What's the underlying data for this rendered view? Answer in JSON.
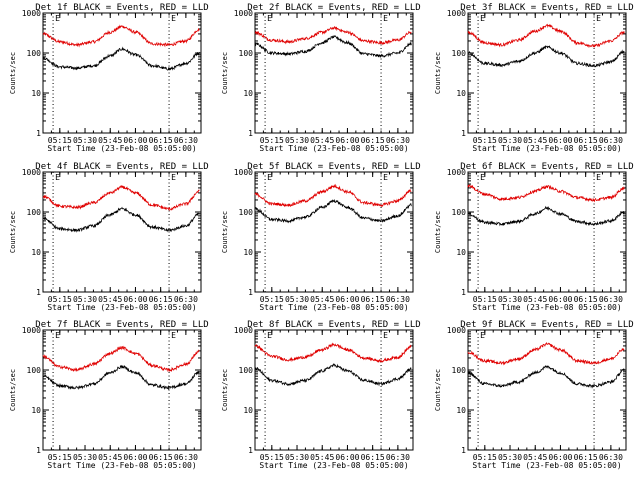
{
  "chart_data": [
    {
      "type": "line",
      "title": "Det 1f BLACK = Events, RED = LLD",
      "xlabel": "Start Time (23-Feb-08 05:05:00)",
      "ylabel": "Counts/sec",
      "yscale": "log",
      "ylim": [
        1,
        1000
      ],
      "x_ticks": [
        "05:15",
        "05:30",
        "05:45",
        "06:00",
        "06:15",
        "06:30"
      ],
      "y_ticks": [
        "1",
        "10",
        "100",
        "1000"
      ],
      "markers": [
        "E",
        "E"
      ],
      "marker_times": [
        "05:11",
        "06:20"
      ],
      "series": [
        {
          "color": "#e00000",
          "x": [
            "05:05",
            "05:15",
            "05:25",
            "05:35",
            "05:45",
            "05:52",
            "06:00",
            "06:10",
            "06:20",
            "06:30",
            "06:38"
          ],
          "y": [
            300,
            190,
            160,
            190,
            330,
            460,
            330,
            170,
            160,
            200,
            390
          ]
        },
        {
          "color": "#000000",
          "x": [
            "05:05",
            "05:15",
            "05:25",
            "05:35",
            "05:45",
            "05:52",
            "06:00",
            "06:10",
            "06:20",
            "06:30",
            "06:38"
          ],
          "y": [
            75,
            45,
            42,
            48,
            85,
            125,
            90,
            48,
            40,
            55,
            100
          ]
        }
      ]
    },
    {
      "type": "line",
      "title": "Det 2f BLACK = Events, RED = LLD",
      "xlabel": "Start Time (23-Feb-08 05:05:00)",
      "ylabel": "Counts/sec",
      "yscale": "log",
      "ylim": [
        1,
        1000
      ],
      "x_ticks": [
        "05:15",
        "05:30",
        "05:45",
        "06:00",
        "06:15",
        "06:30"
      ],
      "y_ticks": [
        "1",
        "10",
        "100",
        "1000"
      ],
      "markers": [
        "E",
        "E"
      ],
      "marker_times": [
        "05:11",
        "06:20"
      ],
      "series": [
        {
          "color": "#e00000",
          "x": [
            "05:05",
            "05:15",
            "05:25",
            "05:35",
            "05:45",
            "05:52",
            "06:00",
            "06:10",
            "06:20",
            "06:30",
            "06:38"
          ],
          "y": [
            330,
            210,
            190,
            230,
            330,
            420,
            330,
            200,
            180,
            210,
            330
          ]
        },
        {
          "color": "#000000",
          "x": [
            "05:05",
            "05:15",
            "05:25",
            "05:35",
            "05:45",
            "05:52",
            "06:00",
            "06:10",
            "06:20",
            "06:30",
            "06:38"
          ],
          "y": [
            170,
            100,
            95,
            110,
            180,
            250,
            180,
            95,
            85,
            100,
            170
          ]
        }
      ]
    },
    {
      "type": "line",
      "title": "Det 3f BLACK = Events, RED = LLD",
      "xlabel": "Start Time (23-Feb-08 05:05:00)",
      "ylabel": "Counts/sec",
      "yscale": "log",
      "ylim": [
        1,
        1000
      ],
      "x_ticks": [
        "05:15",
        "05:30",
        "05:45",
        "06:00",
        "06:15",
        "06:30"
      ],
      "y_ticks": [
        "1",
        "10",
        "100",
        "1000"
      ],
      "markers": [
        "E",
        "E"
      ],
      "marker_times": [
        "05:11",
        "06:20"
      ],
      "series": [
        {
          "color": "#e00000",
          "x": [
            "05:05",
            "05:15",
            "05:25",
            "05:35",
            "05:45",
            "05:52",
            "06:00",
            "06:10",
            "06:20",
            "06:30",
            "06:38"
          ],
          "y": [
            330,
            180,
            160,
            210,
            350,
            480,
            350,
            180,
            150,
            200,
            330
          ]
        },
        {
          "color": "#000000",
          "x": [
            "05:05",
            "05:15",
            "05:25",
            "05:35",
            "05:45",
            "05:52",
            "06:00",
            "06:10",
            "06:20",
            "06:30",
            "06:38"
          ],
          "y": [
            100,
            55,
            50,
            62,
            100,
            140,
            100,
            55,
            48,
            60,
            110
          ]
        }
      ]
    },
    {
      "type": "line",
      "title": "Det 4f BLACK = Events, RED = LLD",
      "xlabel": "Start Time (23-Feb-08 05:05:00)",
      "ylabel": "Counts/sec",
      "yscale": "log",
      "ylim": [
        1,
        1000
      ],
      "x_ticks": [
        "05:15",
        "05:30",
        "05:45",
        "06:00",
        "06:15",
        "06:30"
      ],
      "y_ticks": [
        "1",
        "10",
        "100",
        "1000"
      ],
      "markers": [
        "E",
        "E"
      ],
      "marker_times": [
        "05:11",
        "06:20"
      ],
      "series": [
        {
          "color": "#e00000",
          "x": [
            "05:05",
            "05:15",
            "05:25",
            "05:35",
            "05:45",
            "05:52",
            "06:00",
            "06:10",
            "06:20",
            "06:30",
            "06:38"
          ],
          "y": [
            250,
            140,
            130,
            170,
            300,
            420,
            300,
            150,
            120,
            160,
            330
          ]
        },
        {
          "color": "#000000",
          "x": [
            "05:05",
            "05:15",
            "05:25",
            "05:35",
            "05:45",
            "05:52",
            "06:00",
            "06:10",
            "06:20",
            "06:30",
            "06:38"
          ],
          "y": [
            70,
            38,
            35,
            45,
            85,
            120,
            85,
            42,
            35,
            45,
            90
          ]
        }
      ]
    },
    {
      "type": "line",
      "title": "Det 5f BLACK = Events, RED = LLD",
      "xlabel": "Start Time (23-Feb-08 05:05:00)",
      "ylabel": "Counts/sec",
      "yscale": "log",
      "ylim": [
        1,
        1000
      ],
      "x_ticks": [
        "05:15",
        "05:30",
        "05:45",
        "06:00",
        "06:15",
        "06:30"
      ],
      "y_ticks": [
        "1",
        "10",
        "100",
        "1000"
      ],
      "markers": [
        "E",
        "E"
      ],
      "marker_times": [
        "05:11",
        "06:20"
      ],
      "series": [
        {
          "color": "#e00000",
          "x": [
            "05:05",
            "05:15",
            "05:25",
            "05:35",
            "05:45",
            "05:52",
            "06:00",
            "06:10",
            "06:20",
            "06:30",
            "06:38"
          ],
          "y": [
            280,
            160,
            150,
            190,
            320,
            440,
            320,
            170,
            150,
            190,
            350
          ]
        },
        {
          "color": "#000000",
          "x": [
            "05:05",
            "05:15",
            "05:25",
            "05:35",
            "05:45",
            "05:52",
            "06:00",
            "06:10",
            "06:20",
            "06:30",
            "06:38"
          ],
          "y": [
            120,
            65,
            60,
            75,
            130,
            190,
            130,
            70,
            60,
            80,
            150
          ]
        }
      ]
    },
    {
      "type": "line",
      "title": "Det 6f BLACK = Events, RED = LLD",
      "xlabel": "Start Time (23-Feb-08 05:05:00)",
      "ylabel": "Counts/sec",
      "yscale": "log",
      "ylim": [
        1,
        1000
      ],
      "x_ticks": [
        "05:15",
        "05:30",
        "05:45",
        "06:00",
        "06:15",
        "06:30"
      ],
      "y_ticks": [
        "1",
        "10",
        "100",
        "1000"
      ],
      "markers": [
        "E",
        "E"
      ],
      "marker_times": [
        "05:11",
        "06:20"
      ],
      "series": [
        {
          "color": "#e00000",
          "x": [
            "05:05",
            "05:15",
            "05:25",
            "05:35",
            "05:45",
            "05:52",
            "06:00",
            "06:10",
            "06:20",
            "06:30",
            "06:38"
          ],
          "y": [
            450,
            280,
            210,
            230,
            330,
            430,
            330,
            230,
            200,
            230,
            400
          ]
        },
        {
          "color": "#000000",
          "x": [
            "05:05",
            "05:15",
            "05:25",
            "05:35",
            "05:45",
            "05:52",
            "06:00",
            "06:10",
            "06:20",
            "06:30",
            "06:38"
          ],
          "y": [
            90,
            55,
            50,
            58,
            90,
            125,
            90,
            58,
            50,
            60,
            100
          ]
        }
      ]
    },
    {
      "type": "line",
      "title": "Det 7f BLACK = Events, RED = LLD",
      "xlabel": "Start Time (23-Feb-08 05:05:00)",
      "ylabel": "Counts/sec",
      "yscale": "log",
      "ylim": [
        1,
        1000
      ],
      "x_ticks": [
        "05:15",
        "05:30",
        "05:45",
        "06:00",
        "06:15",
        "06:30"
      ],
      "y_ticks": [
        "1",
        "10",
        "100",
        "1000"
      ],
      "markers": [
        "E",
        "E"
      ],
      "marker_times": [
        "05:11",
        "06:20"
      ],
      "series": [
        {
          "color": "#e00000",
          "x": [
            "05:05",
            "05:15",
            "05:25",
            "05:35",
            "05:45",
            "05:52",
            "06:00",
            "06:10",
            "06:20",
            "06:30",
            "06:38"
          ],
          "y": [
            220,
            120,
            100,
            140,
            260,
            360,
            260,
            130,
            100,
            140,
            290
          ]
        },
        {
          "color": "#000000",
          "x": [
            "05:05",
            "05:15",
            "05:25",
            "05:35",
            "05:45",
            "05:52",
            "06:00",
            "06:10",
            "06:20",
            "06:30",
            "06:38"
          ],
          "y": [
            70,
            40,
            36,
            45,
            85,
            120,
            85,
            42,
            36,
            45,
            90
          ]
        }
      ]
    },
    {
      "type": "line",
      "title": "Det 8f BLACK = Events, RED = LLD",
      "xlabel": "Start Time (23-Feb-08 05:05:00)",
      "ylabel": "Counts/sec",
      "yscale": "log",
      "ylim": [
        1,
        1000
      ],
      "x_ticks": [
        "05:15",
        "05:30",
        "05:45",
        "06:00",
        "06:15",
        "06:30"
      ],
      "y_ticks": [
        "1",
        "10",
        "100",
        "1000"
      ],
      "markers": [
        "E",
        "E"
      ],
      "marker_times": [
        "05:11",
        "06:20"
      ],
      "series": [
        {
          "color": "#e00000",
          "x": [
            "05:05",
            "05:15",
            "05:25",
            "05:35",
            "05:45",
            "05:52",
            "06:00",
            "06:10",
            "06:20",
            "06:30",
            "06:38"
          ],
          "y": [
            400,
            220,
            180,
            210,
            320,
            430,
            320,
            200,
            170,
            210,
            380
          ]
        },
        {
          "color": "#000000",
          "x": [
            "05:05",
            "05:15",
            "05:25",
            "05:35",
            "05:45",
            "05:52",
            "06:00",
            "06:10",
            "06:20",
            "06:30",
            "06:38"
          ],
          "y": [
            110,
            55,
            45,
            55,
            95,
            130,
            95,
            55,
            45,
            60,
            105
          ]
        }
      ]
    },
    {
      "type": "line",
      "title": "Det 9f BLACK = Events, RED = LLD",
      "xlabel": "Start Time (23-Feb-08 05:05:00)",
      "ylabel": "Counts/sec",
      "yscale": "log",
      "ylim": [
        1,
        1000
      ],
      "x_ticks": [
        "05:15",
        "05:30",
        "05:45",
        "06:00",
        "06:15",
        "06:30"
      ],
      "y_ticks": [
        "1",
        "10",
        "100",
        "1000"
      ],
      "markers": [
        "E",
        "E"
      ],
      "marker_times": [
        "05:11",
        "06:20"
      ],
      "series": [
        {
          "color": "#e00000",
          "x": [
            "05:05",
            "05:15",
            "05:25",
            "05:35",
            "05:45",
            "05:52",
            "06:00",
            "06:10",
            "06:20",
            "06:30",
            "06:38"
          ],
          "y": [
            280,
            170,
            150,
            190,
            320,
            440,
            320,
            170,
            150,
            190,
            330
          ]
        },
        {
          "color": "#000000",
          "x": [
            "05:05",
            "05:15",
            "05:25",
            "05:35",
            "05:45",
            "05:52",
            "06:00",
            "06:10",
            "06:20",
            "06:30",
            "06:38"
          ],
          "y": [
            85,
            45,
            40,
            50,
            85,
            120,
            85,
            45,
            40,
            50,
            100
          ]
        }
      ]
    }
  ]
}
